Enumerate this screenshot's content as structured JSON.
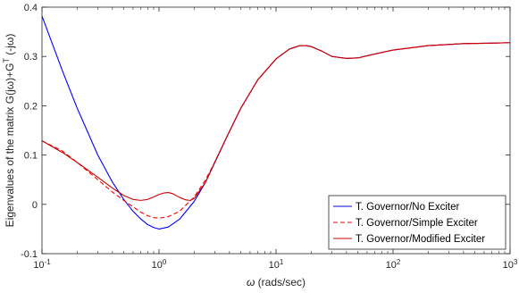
{
  "chart_data": {
    "type": "line",
    "title": "",
    "xlabel_symbol": "ω",
    "xlabel_text": " (rads/sec)",
    "ylabel": "Eigenvalues of the matrix G(jω)+G",
    "ylabel_sup": "T",
    "ylabel_tail": " (-jω)",
    "xscale": "log",
    "xlim": [
      0.1,
      1000
    ],
    "ylim": [
      -0.1,
      0.4
    ],
    "x_ticks": [
      {
        "value": 0.1,
        "base": "10",
        "exp": "-1"
      },
      {
        "value": 1,
        "base": "10",
        "exp": "0"
      },
      {
        "value": 10,
        "base": "10",
        "exp": "1"
      },
      {
        "value": 100,
        "base": "10",
        "exp": "2"
      },
      {
        "value": 1000,
        "base": "10",
        "exp": "3"
      }
    ],
    "y_ticks": [
      {
        "value": -0.1,
        "label": "-0.1"
      },
      {
        "value": 0,
        "label": "0"
      },
      {
        "value": 0.1,
        "label": "0.1"
      },
      {
        "value": 0.2,
        "label": "0.2"
      },
      {
        "value": 0.3,
        "label": "0.3"
      },
      {
        "value": 0.4,
        "label": "0.4"
      }
    ],
    "grid": false,
    "legend_position": "bottom-right",
    "series": [
      {
        "name": "T. Governor/No Exciter",
        "color": "#0000ff",
        "dash": "solid",
        "x": [
          0.1,
          0.15,
          0.2,
          0.3,
          0.4,
          0.5,
          0.6,
          0.7,
          0.8,
          0.9,
          1.0,
          1.2,
          1.5,
          2.0,
          2.5,
          3,
          4,
          5,
          7,
          10,
          13,
          16,
          18,
          20,
          25,
          30,
          40,
          50,
          70,
          100,
          200,
          400,
          700,
          1000
        ],
        "y": [
          0.382,
          0.27,
          0.195,
          0.1,
          0.045,
          0.01,
          -0.014,
          -0.03,
          -0.041,
          -0.047,
          -0.05,
          -0.046,
          -0.03,
          0.006,
          0.045,
          0.085,
          0.148,
          0.195,
          0.253,
          0.295,
          0.315,
          0.322,
          0.322,
          0.32,
          0.31,
          0.3,
          0.296,
          0.297,
          0.305,
          0.313,
          0.322,
          0.326,
          0.327,
          0.328
        ]
      },
      {
        "name": "T. Governor/Simple Exciter",
        "color": "#ff0000",
        "dash": "dashed",
        "x": [
          0.1,
          0.15,
          0.2,
          0.3,
          0.4,
          0.5,
          0.6,
          0.7,
          0.8,
          0.9,
          1.0,
          1.2,
          1.5,
          2.0,
          2.5,
          3,
          4,
          5,
          7,
          10,
          13,
          16,
          18,
          20,
          25,
          30,
          40,
          50,
          70,
          100,
          200,
          400,
          700,
          1000
        ],
        "y": [
          0.129,
          0.108,
          0.085,
          0.05,
          0.025,
          0.008,
          -0.005,
          -0.016,
          -0.023,
          -0.027,
          -0.028,
          -0.025,
          -0.014,
          0.015,
          0.05,
          0.086,
          0.148,
          0.195,
          0.253,
          0.295,
          0.315,
          0.322,
          0.322,
          0.32,
          0.31,
          0.3,
          0.296,
          0.297,
          0.305,
          0.313,
          0.322,
          0.326,
          0.327,
          0.328
        ]
      },
      {
        "name": "T. Governor/Modified Exciter",
        "color": "#cc0000",
        "dash": "solid",
        "x": [
          0.1,
          0.15,
          0.2,
          0.3,
          0.4,
          0.5,
          0.6,
          0.7,
          0.8,
          0.9,
          1.0,
          1.1,
          1.2,
          1.3,
          1.5,
          1.7,
          1.85,
          2.0,
          2.5,
          3,
          4,
          5,
          7,
          10,
          13,
          16,
          18,
          20,
          25,
          30,
          40,
          50,
          70,
          100,
          200,
          400,
          700,
          1000
        ],
        "y": [
          0.129,
          0.105,
          0.085,
          0.055,
          0.033,
          0.018,
          0.01,
          0.008,
          0.01,
          0.015,
          0.02,
          0.023,
          0.024,
          0.022,
          0.014,
          0.009,
          0.008,
          0.012,
          0.045,
          0.086,
          0.148,
          0.195,
          0.253,
          0.295,
          0.315,
          0.322,
          0.322,
          0.32,
          0.31,
          0.3,
          0.296,
          0.297,
          0.305,
          0.313,
          0.322,
          0.326,
          0.327,
          0.328
        ]
      }
    ]
  }
}
